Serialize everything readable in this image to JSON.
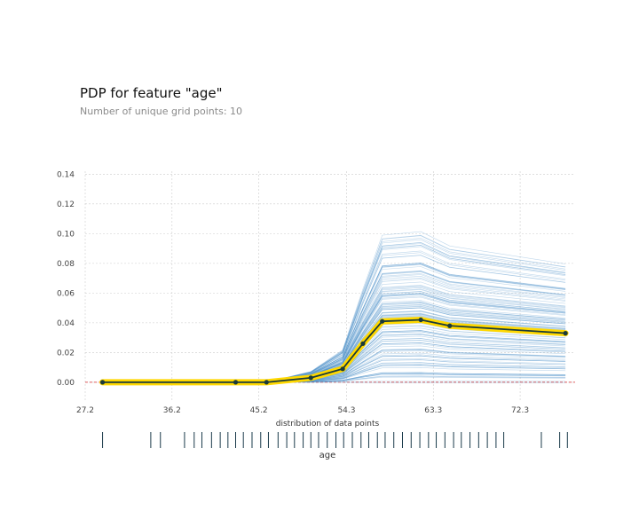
{
  "title": "PDP for feature \"age\"",
  "subtitle": "Number of unique grid points: 10",
  "chart_data": {
    "type": "line",
    "title": "PDP for feature \"age\"",
    "subtitle": "Number of unique grid points: 10",
    "xlabel": "age",
    "dist_label": "distribution of data points",
    "xlim": [
      27.2,
      78.0
    ],
    "ylim": [
      -0.012,
      0.142
    ],
    "yticks": [
      0.0,
      0.02,
      0.04,
      0.06,
      0.08,
      0.1,
      0.12,
      0.14
    ],
    "ytick_labels": [
      "0.00",
      "0.02",
      "0.04",
      "0.06",
      "0.08",
      "0.10",
      "0.12",
      "0.14"
    ],
    "xticks": [
      27.2,
      36.2,
      45.2,
      54.3,
      63.3,
      72.3
    ],
    "xtick_labels": [
      "27.2",
      "36.2",
      "45.2",
      "54.3",
      "63.3",
      "72.3"
    ],
    "grid": true,
    "baseline": 0.0,
    "colors": {
      "pdp_line": "#1a3a3a",
      "pdp_band": "#ffd800",
      "ice_lines": "#4a90c8",
      "baseline": "#d62728",
      "rug": "#1a3a4a"
    },
    "series": [
      {
        "x": [
          29.0,
          42.8,
          46.0,
          50.6,
          53.9,
          56.0,
          58.0,
          62.0,
          65.0,
          77.0
        ],
        "values": [
          0.0,
          0.0,
          0.0,
          0.003,
          0.009,
          0.026,
          0.041,
          0.042,
          0.038,
          0.033
        ]
      }
    ],
    "rug_x": [
      29.0,
      34.0,
      35.0,
      37.5,
      38.5,
      39.3,
      40.3,
      41.2,
      42.0,
      42.8,
      43.6,
      44.5,
      45.4,
      46.2,
      47.2,
      48.1,
      48.9,
      49.8,
      50.6,
      51.4,
      52.3,
      53.2,
      54.0,
      54.9,
      55.8,
      56.6,
      57.5,
      58.3,
      59.2,
      60.1,
      61.0,
      61.9,
      62.8,
      63.6,
      64.5,
      65.4,
      66.2,
      67.1,
      68.0,
      68.9,
      69.8,
      70.6,
      74.5,
      76.4,
      77.2
    ]
  }
}
